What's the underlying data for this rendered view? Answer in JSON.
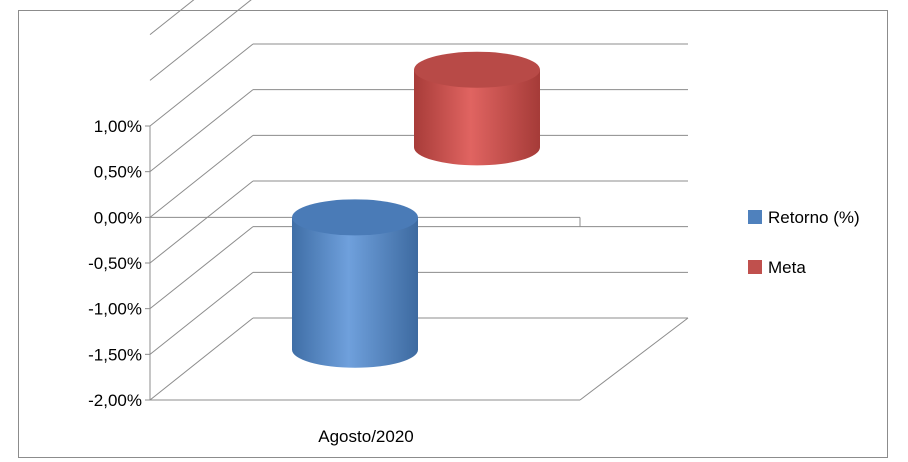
{
  "chart_data": {
    "type": "bar",
    "style": "3d-cylinder",
    "categories": [
      "Agosto/2020"
    ],
    "series": [
      {
        "name": "Retorno (%)",
        "values": [
          -1.45
        ],
        "color": "#4F81BD"
      },
      {
        "name": "Meta",
        "values": [
          0.85
        ],
        "color": "#C0504D"
      }
    ],
    "yticks": [
      "1,00%",
      "0,50%",
      "0,00%",
      "-0,50%",
      "-1,00%",
      "-1,50%",
      "-2,00%"
    ],
    "ylim": [
      -2.0,
      1.0
    ],
    "grid": true,
    "legend": "right"
  }
}
